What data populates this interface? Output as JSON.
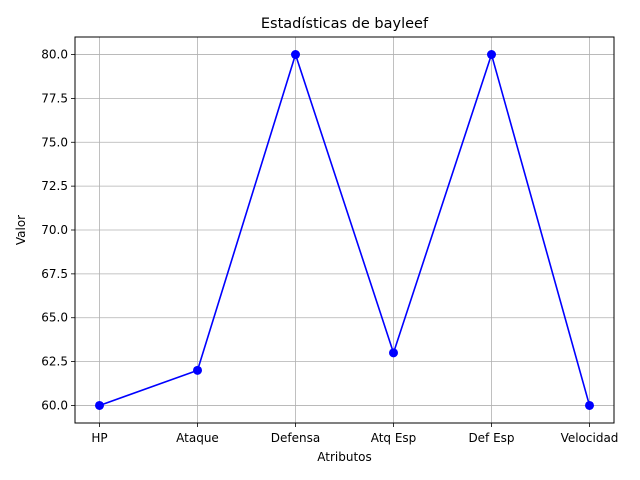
{
  "chart_data": {
    "type": "line",
    "title": "Estadísticas de bayleef",
    "xlabel": "Atributos",
    "ylabel": "Valor",
    "categories": [
      "HP",
      "Ataque",
      "Defensa",
      "Atq Esp",
      "Def Esp",
      "Velocidad"
    ],
    "series": [
      {
        "values": [
          60,
          62,
          80,
          63,
          80,
          60
        ],
        "color": "#0000ff",
        "marker": "circle"
      }
    ],
    "ylim": [
      59,
      81
    ],
    "yticks": [
      60.0,
      62.5,
      65.0,
      67.5,
      70.0,
      72.5,
      75.0,
      77.5,
      80.0
    ],
    "ytick_labels": [
      "60.0",
      "62.5",
      "65.0",
      "67.5",
      "70.0",
      "72.5",
      "75.0",
      "77.5",
      "80.0"
    ],
    "grid": true,
    "grid_color": "#b0b0b0",
    "legend": "none"
  }
}
